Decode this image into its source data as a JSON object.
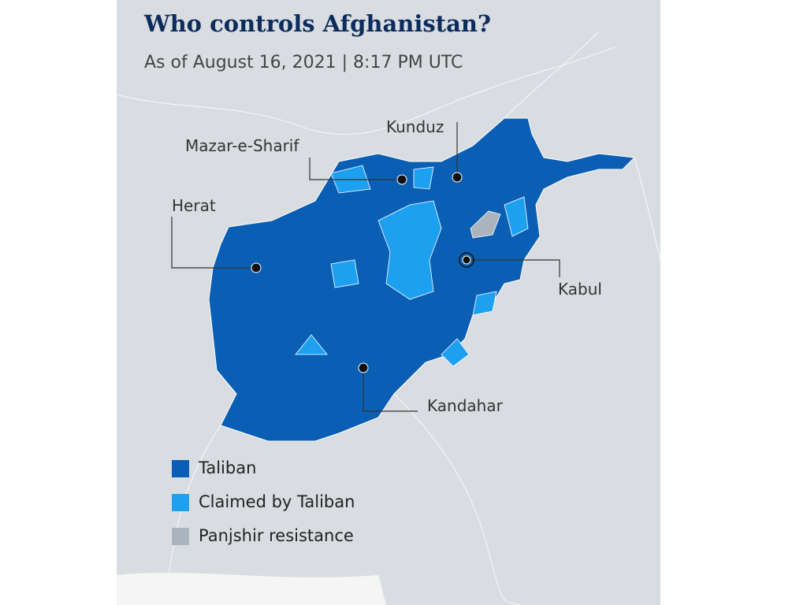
{
  "header": {
    "title": "Who controls Afghanistan?",
    "subtitle": "As of August 16, 2021 | 8:17 PM UTC"
  },
  "cities": [
    {
      "label": "Kunduz"
    },
    {
      "label": "Mazar-e-Sharif"
    },
    {
      "label": "Herat"
    },
    {
      "label": "Kabul"
    },
    {
      "label": "Kandahar"
    }
  ],
  "legend": [
    {
      "label": "Taliban",
      "color": "#0a5fb4"
    },
    {
      "label": "Claimed by Taliban",
      "color": "#1ea0f0"
    },
    {
      "label": "Panjshir resistance",
      "color": "#aab4be"
    }
  ]
}
